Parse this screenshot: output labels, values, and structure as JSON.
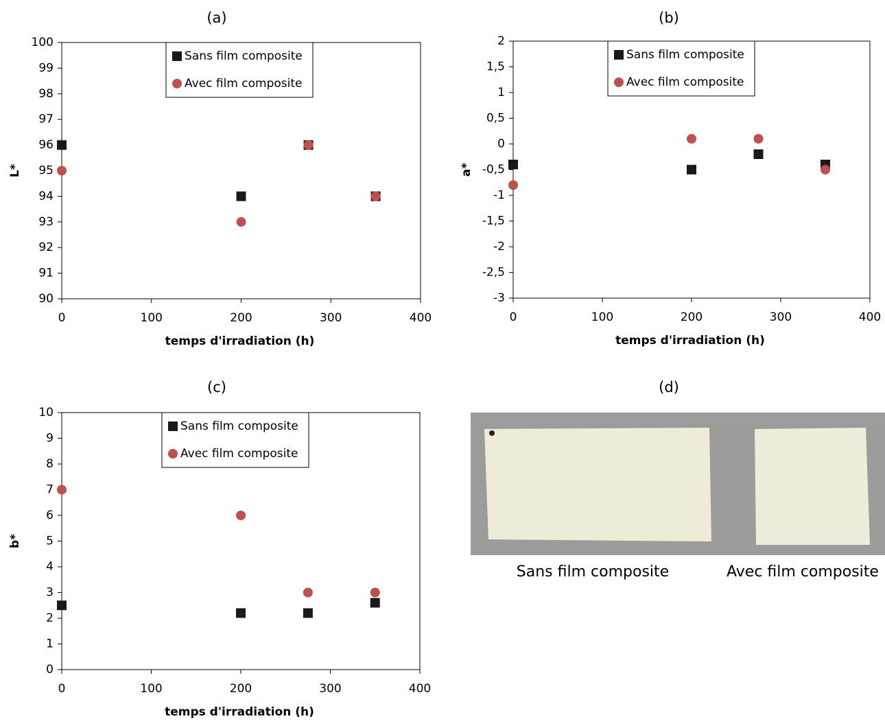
{
  "chart_data": [
    {
      "type": "scatter",
      "title": "(a)",
      "x_label": "temps d'irradiation  (h)",
      "y_label": "L*",
      "xlim": [
        0,
        400
      ],
      "xticks": [
        0,
        100,
        200,
        300,
        400
      ],
      "ylim": [
        90,
        100
      ],
      "yticks": [
        90,
        91,
        92,
        93,
        94,
        95,
        96,
        97,
        98,
        99,
        100
      ],
      "x": [
        0,
        200,
        275,
        350
      ],
      "series": [
        {
          "name": "Sans film composite",
          "color": "#1a1a1a",
          "marker": "square",
          "values": [
            96,
            94,
            96,
            94
          ]
        },
        {
          "name": "Avec film composite",
          "color": "#c0504d",
          "marker": "circle",
          "values": [
            95,
            93,
            96,
            94
          ]
        }
      ]
    },
    {
      "type": "scatter",
      "title": "(b)",
      "x_label": "temps d'irradiation  (h)",
      "y_label": "a*",
      "xlim": [
        0,
        400
      ],
      "xticks": [
        0,
        100,
        200,
        300,
        400
      ],
      "ylim": [
        -3,
        2
      ],
      "yticks": [
        -3,
        {
          "value": -2.5,
          "label": "-2,5"
        },
        -2,
        {
          "value": -1.5,
          "label": "-1,5"
        },
        -1,
        {
          "value": -0.5,
          "label": "-0,5"
        },
        0,
        {
          "value": 0.5,
          "label": "0,5"
        },
        1,
        {
          "value": 1.5,
          "label": "1,5"
        },
        2
      ],
      "x": [
        0,
        200,
        275,
        350
      ],
      "series": [
        {
          "name": "Sans film composite",
          "color": "#1a1a1a",
          "marker": "square",
          "values": [
            -0.4,
            -0.5,
            -0.2,
            -0.4
          ]
        },
        {
          "name": "Avec film composite",
          "color": "#c0504d",
          "marker": "circle",
          "values": [
            -0.8,
            0.1,
            0.1,
            -0.5
          ]
        }
      ]
    },
    {
      "type": "scatter",
      "title": "(c)",
      "x_label": "temps d'irradiation  (h)",
      "y_label": "b*",
      "xlim": [
        0,
        400
      ],
      "xticks": [
        0,
        100,
        200,
        300,
        400
      ],
      "ylim": [
        0,
        10
      ],
      "yticks": [
        0,
        1,
        2,
        3,
        4,
        5,
        6,
        7,
        8,
        9,
        10
      ],
      "x": [
        0,
        200,
        275,
        350
      ],
      "series": [
        {
          "name": "Sans film composite",
          "color": "#1a1a1a",
          "marker": "square",
          "values": [
            2.5,
            2.2,
            2.2,
            2.6
          ]
        },
        {
          "name": "Avec film composite",
          "color": "#c0504d",
          "marker": "circle",
          "values": [
            7,
            6,
            3,
            3
          ]
        }
      ]
    }
  ],
  "photo": {
    "title": "(d)",
    "captions": [
      "Sans film composite",
      "Avec film composite"
    ]
  }
}
